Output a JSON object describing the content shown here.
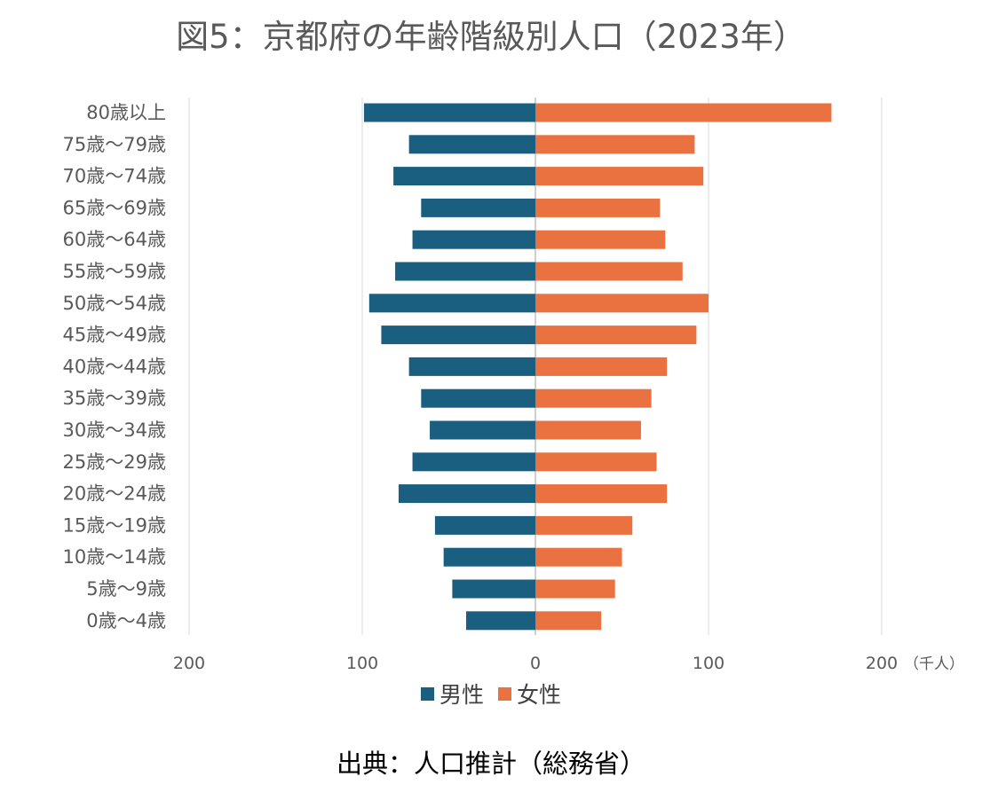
{
  "title": "図5：京都府の年齢階級別人口（2023年）",
  "source": "出典：人口推計（総務省）",
  "colors": {
    "male": "#1a5e80",
    "female": "#ea7140",
    "grid": "#d9d9d9",
    "axis": "#bfbfbf"
  },
  "chart_data": {
    "type": "bar",
    "orientation": "horizontal-population-pyramid",
    "unit_label": "（千人）",
    "x_ticks": [
      "200",
      "100",
      "0",
      "100",
      "200"
    ],
    "xlim": [
      -200,
      200
    ],
    "grid": true,
    "legend_position": "bottom",
    "categories": [
      "80歳以上",
      "75歳～79歳",
      "70歳～74歳",
      "65歳～69歳",
      "60歳～64歳",
      "55歳～59歳",
      "50歳～54歳",
      "45歳～49歳",
      "40歳～44歳",
      "35歳～39歳",
      "30歳～34歳",
      "25歳～29歳",
      "20歳～24歳",
      "15歳～19歳",
      "10歳～14歳",
      "5歳～9歳",
      "0歳～4歳"
    ],
    "series": [
      {
        "name": "男性",
        "key": "male",
        "values": [
          99,
          73,
          82,
          66,
          71,
          81,
          96,
          89,
          73,
          66,
          61,
          71,
          79,
          58,
          53,
          48,
          40
        ]
      },
      {
        "name": "女性",
        "key": "female",
        "values": [
          171,
          92,
          97,
          72,
          75,
          85,
          100,
          93,
          76,
          67,
          61,
          70,
          76,
          56,
          50,
          46,
          38
        ]
      }
    ]
  }
}
